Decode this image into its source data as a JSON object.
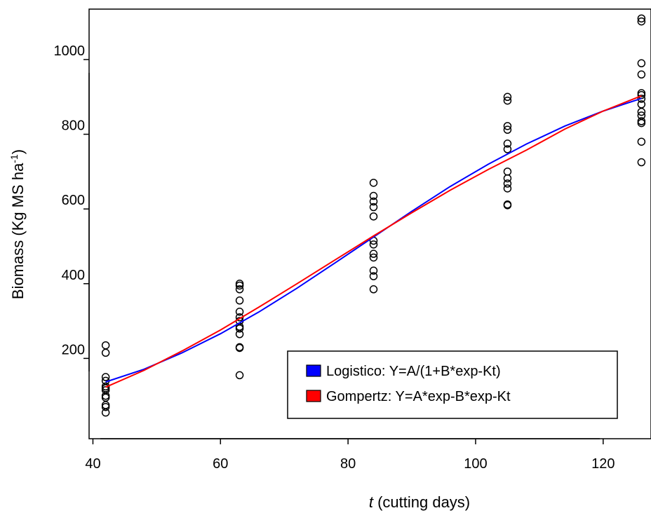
{
  "chart_data": {
    "type": "scatter",
    "xlabel": {
      "italic": "t",
      "rest": " (cutting days)"
    },
    "ylabel": {
      "main": "Biomass (Kg MS ha",
      "sup": "-1",
      "close": ")"
    },
    "xlim": [
      39.4,
      127.5
    ],
    "ylim": [
      -15,
      1135
    ],
    "x_ticks": [
      40,
      60,
      80,
      100,
      120
    ],
    "y_ticks": [
      200,
      400,
      600,
      800,
      1000
    ],
    "grid": false,
    "legend_position": "bottom-right",
    "observations": [
      {
        "x": 42,
        "y": [
          235,
          215,
          150,
          140,
          125,
          120,
          115,
          100,
          95,
          75,
          70,
          55
        ]
      },
      {
        "x": 63,
        "y": [
          400,
          395,
          385,
          355,
          325,
          310,
          300,
          285,
          280,
          265,
          230,
          228,
          155
        ]
      },
      {
        "x": 84,
        "y": [
          670,
          635,
          620,
          605,
          580,
          515,
          505,
          480,
          470,
          435,
          420,
          385
        ]
      },
      {
        "x": 105,
        "y": [
          900,
          890,
          822,
          812,
          775,
          760,
          700,
          682,
          668,
          655,
          612,
          610
        ]
      },
      {
        "x": 126,
        "y": [
          1110,
          1102,
          990,
          960,
          910,
          905,
          895,
          880,
          860,
          850,
          835,
          830,
          780,
          725
        ]
      }
    ],
    "series": [
      {
        "name": "Logistico: Y=A/(1+B*exp-Kt)",
        "color": "#0000ff",
        "x": [
          42,
          48,
          54,
          60,
          66,
          72,
          78,
          84,
          90,
          96,
          102,
          108,
          114,
          120,
          126
        ],
        "y": [
          137,
          171,
          215,
          266,
          324,
          388,
          456,
          525,
          594,
          660,
          720,
          774,
          822,
          862,
          896
        ]
      },
      {
        "name": "Gompertz: Y=A*exp-B*exp-Kt",
        "color": "#ff0000",
        "x": [
          42,
          48,
          54,
          60,
          66,
          72,
          78,
          84,
          90,
          96,
          102,
          108,
          114,
          120,
          126
        ],
        "y": [
          123,
          168,
          220,
          276,
          337,
          400,
          464,
          528,
          590,
          650,
          706,
          758,
          814,
          862,
          903
        ]
      }
    ]
  }
}
